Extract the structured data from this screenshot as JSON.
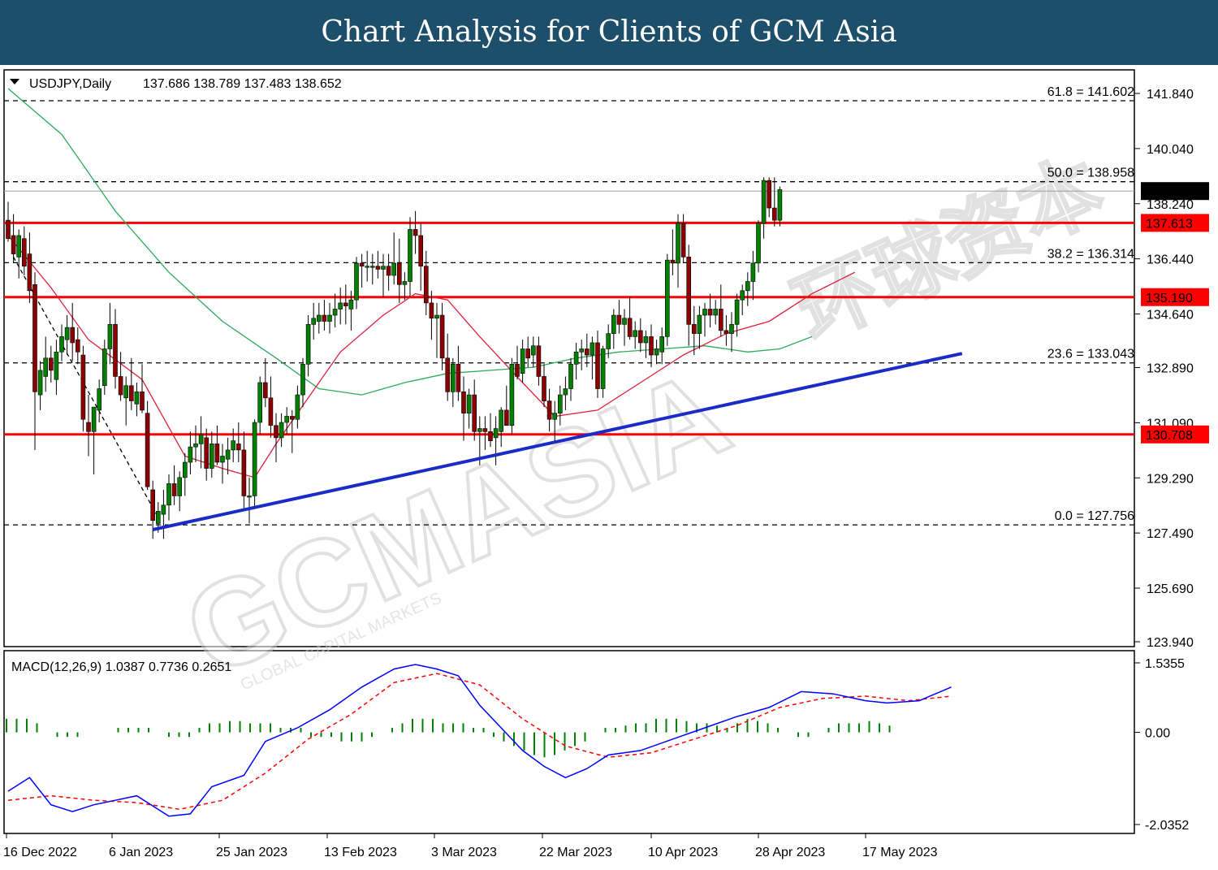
{
  "banner": {
    "title": "Chart Analysis for Clients of GCM Asia"
  },
  "watermark": {
    "brand": "GCMASIA",
    "tagline": "GLOBAL CAPITAL MARKETS",
    "chinese": "环球资本"
  },
  "chart_data": {
    "type": "candlestick",
    "symbol_label": "USDJPY,Daily",
    "ohlc_label": "137.686 138.789 137.483 138.652",
    "price_axis": {
      "min": 123.94,
      "max": 142.3,
      "ticks": [
        "141.840",
        "140.040",
        "138.240",
        "136.440",
        "134.640",
        "132.890",
        "131.090",
        "129.290",
        "127.490",
        "125.690",
        "123.940"
      ]
    },
    "date_labels": [
      "16 Dec 2022",
      "6 Jan 2023",
      "25 Jan 2023",
      "13 Feb 2023",
      "3 Mar 2023",
      "22 Mar 2023",
      "10 Apr 2023",
      "28 Apr 2023",
      "17 May 2023"
    ],
    "current_price": {
      "value": 138.652,
      "label": "138.652"
    },
    "horizontal_levels": [
      {
        "value": 137.613,
        "label": "137.613",
        "color": "#ff0000"
      },
      {
        "value": 135.19,
        "label": "135.190",
        "color": "#ff0000"
      },
      {
        "value": 130.708,
        "label": "130.708",
        "color": "#ff0000"
      }
    ],
    "fibonacci": [
      {
        "value": 141.602,
        "label": "61.8 = 141.602"
      },
      {
        "value": 138.958,
        "label": "50.0 = 138.958"
      },
      {
        "value": 136.314,
        "label": "38.2 = 136.314"
      },
      {
        "value": 133.043,
        "label": "23.6 = 133.043"
      },
      {
        "value": 127.756,
        "label": "0.0 = 127.756"
      }
    ],
    "trendline": {
      "color": "#1a2bc8",
      "from": {
        "bar": 27,
        "price": 127.6
      },
      "to": {
        "bar": 178,
        "price": 133.35
      }
    },
    "candles": [
      [
        137.7,
        138.3,
        137.0,
        137.1
      ],
      [
        137.2,
        137.9,
        136.3,
        136.6
      ],
      [
        136.5,
        137.4,
        135.8,
        137.2
      ],
      [
        137.1,
        137.5,
        135.9,
        136.2
      ],
      [
        136.6,
        137.3,
        135.0,
        135.4
      ],
      [
        135.6,
        136.0,
        130.2,
        132.1
      ],
      [
        132.0,
        133.1,
        131.5,
        132.8
      ],
      [
        132.6,
        133.9,
        132.1,
        133.2
      ],
      [
        133.2,
        133.6,
        132.4,
        132.8
      ],
      [
        132.5,
        133.8,
        132.0,
        133.4
      ],
      [
        133.4,
        134.3,
        133.1,
        133.9
      ],
      [
        133.8,
        134.6,
        133.3,
        134.2
      ],
      [
        134.2,
        135.0,
        133.1,
        133.7
      ],
      [
        133.8,
        134.2,
        133.0,
        133.4
      ],
      [
        133.3,
        133.6,
        130.8,
        131.2
      ],
      [
        131.1,
        132.0,
        130.0,
        130.8
      ],
      [
        130.8,
        131.5,
        129.4,
        131.6
      ],
      [
        131.5,
        132.5,
        131.1,
        132.2
      ],
      [
        132.3,
        133.8,
        132.0,
        133.5
      ],
      [
        133.5,
        135.0,
        133.0,
        134.3
      ],
      [
        134.3,
        134.8,
        132.2,
        132.6
      ],
      [
        132.6,
        133.4,
        131.8,
        132.0
      ],
      [
        131.9,
        132.6,
        131.0,
        132.3
      ],
      [
        132.3,
        133.2,
        131.5,
        131.8
      ],
      [
        131.7,
        132.4,
        131.3,
        132.1
      ],
      [
        132.1,
        133.0,
        131.4,
        131.5
      ],
      [
        131.4,
        131.8,
        128.9,
        129.0
      ],
      [
        128.9,
        129.2,
        127.3,
        127.9
      ],
      [
        127.8,
        128.5,
        127.5,
        128.2
      ],
      [
        128.1,
        128.9,
        127.3,
        128.4
      ],
      [
        128.4,
        129.4,
        127.9,
        129.1
      ],
      [
        129.1,
        129.7,
        128.4,
        128.7
      ],
      [
        128.7,
        129.5,
        128.2,
        129.3
      ],
      [
        129.3,
        130.1,
        128.7,
        129.8
      ],
      [
        129.8,
        130.8,
        129.4,
        130.3
      ],
      [
        130.3,
        131.0,
        129.8,
        130.4
      ],
      [
        130.4,
        131.3,
        129.6,
        130.7
      ],
      [
        130.6,
        130.9,
        129.2,
        129.6
      ],
      [
        129.6,
        130.8,
        129.3,
        130.4
      ],
      [
        130.4,
        131.0,
        129.7,
        129.8
      ],
      [
        129.8,
        130.4,
        129.1,
        130.0
      ],
      [
        129.9,
        130.6,
        129.4,
        130.2
      ],
      [
        130.2,
        130.9,
        129.8,
        130.5
      ],
      [
        130.4,
        131.1,
        129.8,
        130.2
      ],
      [
        130.2,
        130.8,
        128.3,
        128.7
      ],
      [
        128.7,
        129.3,
        127.8,
        128.7
      ],
      [
        128.7,
        131.2,
        128.3,
        131.1
      ],
      [
        131.1,
        132.6,
        130.7,
        132.4
      ],
      [
        132.4,
        133.2,
        131.6,
        131.9
      ],
      [
        131.9,
        132.6,
        130.6,
        131.0
      ],
      [
        131.0,
        131.4,
        129.8,
        130.6
      ],
      [
        130.6,
        131.4,
        130.3,
        131.1
      ],
      [
        131.1,
        131.6,
        130.7,
        131.3
      ],
      [
        131.3,
        131.5,
        130.1,
        131.2
      ],
      [
        131.2,
        132.3,
        130.9,
        132.0
      ],
      [
        132.0,
        133.2,
        131.6,
        133.0
      ],
      [
        133.0,
        134.6,
        132.6,
        134.3
      ],
      [
        134.3,
        135.0,
        133.8,
        134.5
      ],
      [
        134.4,
        135.0,
        134.0,
        134.6
      ],
      [
        134.6,
        135.1,
        134.1,
        134.4
      ],
      [
        134.4,
        135.0,
        134.0,
        134.6
      ],
      [
        134.6,
        135.3,
        134.2,
        134.8
      ],
      [
        134.8,
        135.5,
        134.3,
        135.0
      ],
      [
        135.0,
        135.6,
        134.3,
        134.9
      ],
      [
        134.8,
        135.4,
        134.1,
        135.1
      ],
      [
        135.1,
        136.5,
        134.8,
        136.3
      ],
      [
        136.3,
        136.6,
        135.5,
        136.2
      ],
      [
        136.2,
        136.7,
        135.7,
        136.2
      ],
      [
        136.2,
        136.6,
        135.6,
        136.2
      ],
      [
        136.2,
        136.7,
        135.8,
        136.1
      ],
      [
        136.1,
        136.6,
        135.2,
        136.2
      ],
      [
        136.2,
        136.6,
        135.4,
        135.9
      ],
      [
        135.9,
        137.3,
        135.6,
        136.3
      ],
      [
        136.3,
        137.1,
        135.0,
        135.6
      ],
      [
        135.6,
        136.0,
        135.1,
        135.7
      ],
      [
        135.7,
        137.8,
        135.2,
        137.4
      ],
      [
        137.4,
        138.0,
        136.6,
        137.2
      ],
      [
        137.2,
        137.6,
        135.4,
        136.2
      ],
      [
        136.2,
        136.7,
        134.6,
        135.0
      ],
      [
        135.0,
        135.4,
        133.8,
        134.5
      ],
      [
        134.5,
        135.0,
        133.2,
        134.6
      ],
      [
        134.6,
        135.0,
        132.8,
        133.2
      ],
      [
        133.2,
        134.0,
        131.8,
        132.1
      ],
      [
        132.1,
        133.2,
        131.6,
        133.0
      ],
      [
        133.0,
        133.6,
        131.8,
        132.1
      ],
      [
        132.1,
        132.6,
        130.5,
        131.4
      ],
      [
        131.4,
        132.2,
        130.9,
        132.0
      ],
      [
        132.0,
        132.5,
        130.5,
        130.8
      ],
      [
        130.8,
        131.3,
        129.7,
        130.9
      ],
      [
        130.9,
        131.3,
        130.2,
        130.8
      ],
      [
        130.8,
        131.4,
        130.3,
        130.5
      ],
      [
        130.6,
        131.3,
        129.7,
        130.9
      ],
      [
        130.8,
        131.6,
        130.3,
        131.5
      ],
      [
        131.5,
        132.3,
        131.0,
        131.0
      ],
      [
        131.0,
        133.2,
        130.7,
        133.0
      ],
      [
        133.0,
        133.6,
        132.5,
        132.6
      ],
      [
        132.7,
        133.8,
        132.4,
        133.5
      ],
      [
        133.5,
        133.9,
        132.9,
        133.2
      ],
      [
        133.3,
        133.9,
        132.9,
        133.6
      ],
      [
        133.6,
        133.9,
        132.3,
        132.6
      ],
      [
        132.6,
        133.0,
        131.6,
        131.8
      ],
      [
        131.8,
        132.2,
        130.8,
        131.2
      ],
      [
        131.2,
        131.8,
        130.5,
        131.4
      ],
      [
        131.4,
        132.3,
        131.0,
        132.0
      ],
      [
        132.0,
        132.6,
        131.5,
        132.2
      ],
      [
        132.2,
        133.2,
        131.8,
        133.0
      ],
      [
        133.0,
        133.7,
        132.5,
        133.4
      ],
      [
        133.4,
        133.8,
        132.8,
        133.5
      ],
      [
        133.5,
        134.0,
        132.9,
        133.3
      ],
      [
        133.3,
        133.9,
        132.5,
        133.7
      ],
      [
        133.7,
        134.1,
        131.9,
        132.2
      ],
      [
        132.2,
        133.6,
        131.9,
        133.5
      ],
      [
        133.5,
        134.3,
        133.2,
        134.0
      ],
      [
        134.0,
        134.8,
        133.5,
        134.6
      ],
      [
        134.6,
        135.1,
        134.0,
        134.3
      ],
      [
        134.3,
        134.8,
        133.6,
        134.5
      ],
      [
        134.5,
        135.2,
        133.8,
        133.9
      ],
      [
        133.9,
        134.4,
        133.5,
        134.1
      ],
      [
        134.1,
        134.5,
        133.4,
        133.7
      ],
      [
        133.7,
        134.1,
        133.2,
        133.9
      ],
      [
        133.9,
        134.3,
        132.9,
        133.3
      ],
      [
        133.3,
        133.8,
        133.0,
        133.5
      ],
      [
        133.4,
        134.2,
        133.0,
        133.9
      ],
      [
        133.9,
        136.6,
        133.6,
        136.4
      ],
      [
        136.4,
        137.4,
        135.9,
        136.3
      ],
      [
        136.3,
        137.9,
        135.5,
        137.6
      ],
      [
        137.6,
        137.9,
        136.3,
        136.5
      ],
      [
        136.5,
        136.9,
        133.6,
        134.3
      ],
      [
        134.3,
        134.9,
        133.3,
        134.0
      ],
      [
        134.0,
        134.9,
        133.5,
        134.6
      ],
      [
        134.6,
        135.0,
        133.9,
        134.8
      ],
      [
        134.8,
        135.3,
        134.2,
        134.6
      ],
      [
        134.6,
        135.1,
        134.3,
        134.8
      ],
      [
        134.8,
        135.6,
        133.9,
        134.1
      ],
      [
        134.1,
        134.6,
        133.6,
        134.0
      ],
      [
        134.0,
        134.7,
        133.4,
        134.3
      ],
      [
        134.3,
        135.3,
        133.9,
        135.1
      ],
      [
        135.1,
        135.6,
        134.6,
        135.4
      ],
      [
        135.4,
        136.0,
        134.9,
        135.7
      ],
      [
        135.7,
        136.7,
        135.1,
        136.3
      ],
      [
        136.3,
        137.7,
        136.0,
        137.6
      ],
      [
        137.6,
        139.1,
        137.1,
        139.0
      ],
      [
        139.0,
        139.1,
        137.8,
        138.1
      ],
      [
        138.1,
        139.1,
        137.5,
        137.7
      ],
      [
        137.7,
        138.8,
        137.5,
        138.7
      ]
    ],
    "ema_fast": [
      [
        0,
        137.2
      ],
      [
        8,
        135.5
      ],
      [
        15,
        133.8
      ],
      [
        25,
        132.5
      ],
      [
        33,
        130.0
      ],
      [
        40,
        129.6
      ],
      [
        46,
        129.3
      ],
      [
        50,
        130.4
      ],
      [
        56,
        131.9
      ],
      [
        62,
        133.4
      ],
      [
        70,
        134.6
      ],
      [
        76,
        135.3
      ],
      [
        82,
        135.1
      ],
      [
        88,
        133.9
      ],
      [
        96,
        132.4
      ],
      [
        102,
        131.3
      ],
      [
        110,
        131.5
      ],
      [
        118,
        132.4
      ],
      [
        126,
        133.3
      ],
      [
        134,
        134.0
      ],
      [
        142,
        134.4
      ],
      [
        150,
        135.3
      ],
      [
        158,
        136.0
      ]
    ],
    "ema_slow": [
      [
        0,
        142.0
      ],
      [
        10,
        140.5
      ],
      [
        20,
        138.0
      ],
      [
        30,
        136.0
      ],
      [
        40,
        134.4
      ],
      [
        50,
        133.2
      ],
      [
        58,
        132.2
      ],
      [
        66,
        132.0
      ],
      [
        74,
        132.4
      ],
      [
        82,
        132.7
      ],
      [
        90,
        132.8
      ],
      [
        98,
        132.9
      ],
      [
        106,
        133.2
      ],
      [
        114,
        133.4
      ],
      [
        122,
        133.5
      ],
      [
        130,
        133.6
      ],
      [
        138,
        133.4
      ],
      [
        144,
        133.5
      ],
      [
        150,
        133.9
      ]
    ],
    "dashed_trend": {
      "from": [
        1,
        136.5
      ],
      "to": [
        28,
        128.0
      ]
    },
    "macd": {
      "label": "MACD(12,26,9) 1.0387 0.7736 0.2651",
      "axis": {
        "min": -2.0352,
        "max": 1.5355,
        "ticks": [
          "1.5355",
          "0.00",
          "-2.0352"
        ]
      },
      "line_color": "#0000ff",
      "signal_color": "#ff0000",
      "hist_color": "#008000",
      "macd_points": [
        [
          0,
          -1.3
        ],
        [
          4,
          -1.0
        ],
        [
          8,
          -1.6
        ],
        [
          12,
          -1.75
        ],
        [
          16,
          -1.6
        ],
        [
          20,
          -1.5
        ],
        [
          24,
          -1.4
        ],
        [
          30,
          -1.85
        ],
        [
          34,
          -1.8
        ],
        [
          38,
          -1.2
        ],
        [
          44,
          -0.95
        ],
        [
          48,
          -0.2
        ],
        [
          54,
          0.1
        ],
        [
          60,
          0.5
        ],
        [
          66,
          1.0
        ],
        [
          72,
          1.4
        ],
        [
          76,
          1.5
        ],
        [
          80,
          1.4
        ],
        [
          84,
          1.25
        ],
        [
          88,
          0.6
        ],
        [
          92,
          0.1
        ],
        [
          96,
          -0.4
        ],
        [
          100,
          -0.75
        ],
        [
          104,
          -1.0
        ],
        [
          108,
          -0.8
        ],
        [
          112,
          -0.5
        ],
        [
          118,
          -0.4
        ],
        [
          124,
          -0.15
        ],
        [
          130,
          0.1
        ],
        [
          136,
          0.35
        ],
        [
          142,
          0.55
        ],
        [
          148,
          0.9
        ],
        [
          154,
          0.85
        ],
        [
          160,
          0.7
        ],
        [
          164,
          0.65
        ],
        [
          170,
          0.7
        ],
        [
          176,
          1.0
        ]
      ],
      "signal_points": [
        [
          0,
          -1.5
        ],
        [
          8,
          -1.4
        ],
        [
          16,
          -1.5
        ],
        [
          24,
          -1.55
        ],
        [
          32,
          -1.7
        ],
        [
          40,
          -1.5
        ],
        [
          48,
          -0.9
        ],
        [
          56,
          -0.15
        ],
        [
          64,
          0.4
        ],
        [
          72,
          1.1
        ],
        [
          80,
          1.3
        ],
        [
          88,
          1.05
        ],
        [
          96,
          0.3
        ],
        [
          104,
          -0.3
        ],
        [
          112,
          -0.55
        ],
        [
          120,
          -0.45
        ],
        [
          128,
          -0.15
        ],
        [
          136,
          0.15
        ],
        [
          144,
          0.55
        ],
        [
          152,
          0.75
        ],
        [
          160,
          0.8
        ],
        [
          168,
          0.7
        ],
        [
          176,
          0.8
        ]
      ],
      "histogram": [
        0.3,
        0.3,
        0.3,
        0.2,
        0.0,
        -0.1,
        -0.1,
        -0.1,
        0.0,
        0.0,
        0.0,
        0.1,
        0.1,
        0.1,
        0.1,
        0.0,
        -0.1,
        -0.1,
        -0.1,
        0.1,
        0.2,
        0.2,
        0.25,
        0.25,
        0.2,
        0.2,
        0.2,
        0.1,
        0.1,
        0.1,
        -0.1,
        -0.1,
        -0.1,
        -0.2,
        -0.2,
        -0.2,
        -0.1,
        0.0,
        0.1,
        0.2,
        0.3,
        0.3,
        0.3,
        0.2,
        0.2,
        0.2,
        0.1,
        0.1,
        -0.1,
        -0.2,
        -0.3,
        -0.4,
        -0.5,
        -0.55,
        -0.5,
        -0.4,
        -0.3,
        -0.2,
        0.0,
        0.1,
        0.1,
        0.15,
        0.2,
        0.2,
        0.3,
        0.3,
        0.3,
        0.25,
        0.2,
        0.2,
        0.15,
        0.1,
        0.2,
        0.3,
        0.25,
        0.2,
        0.1,
        0.0,
        -0.1,
        -0.1,
        0.0,
        0.1,
        0.2,
        0.2,
        0.2,
        0.25,
        0.2,
        0.15
      ]
    }
  }
}
